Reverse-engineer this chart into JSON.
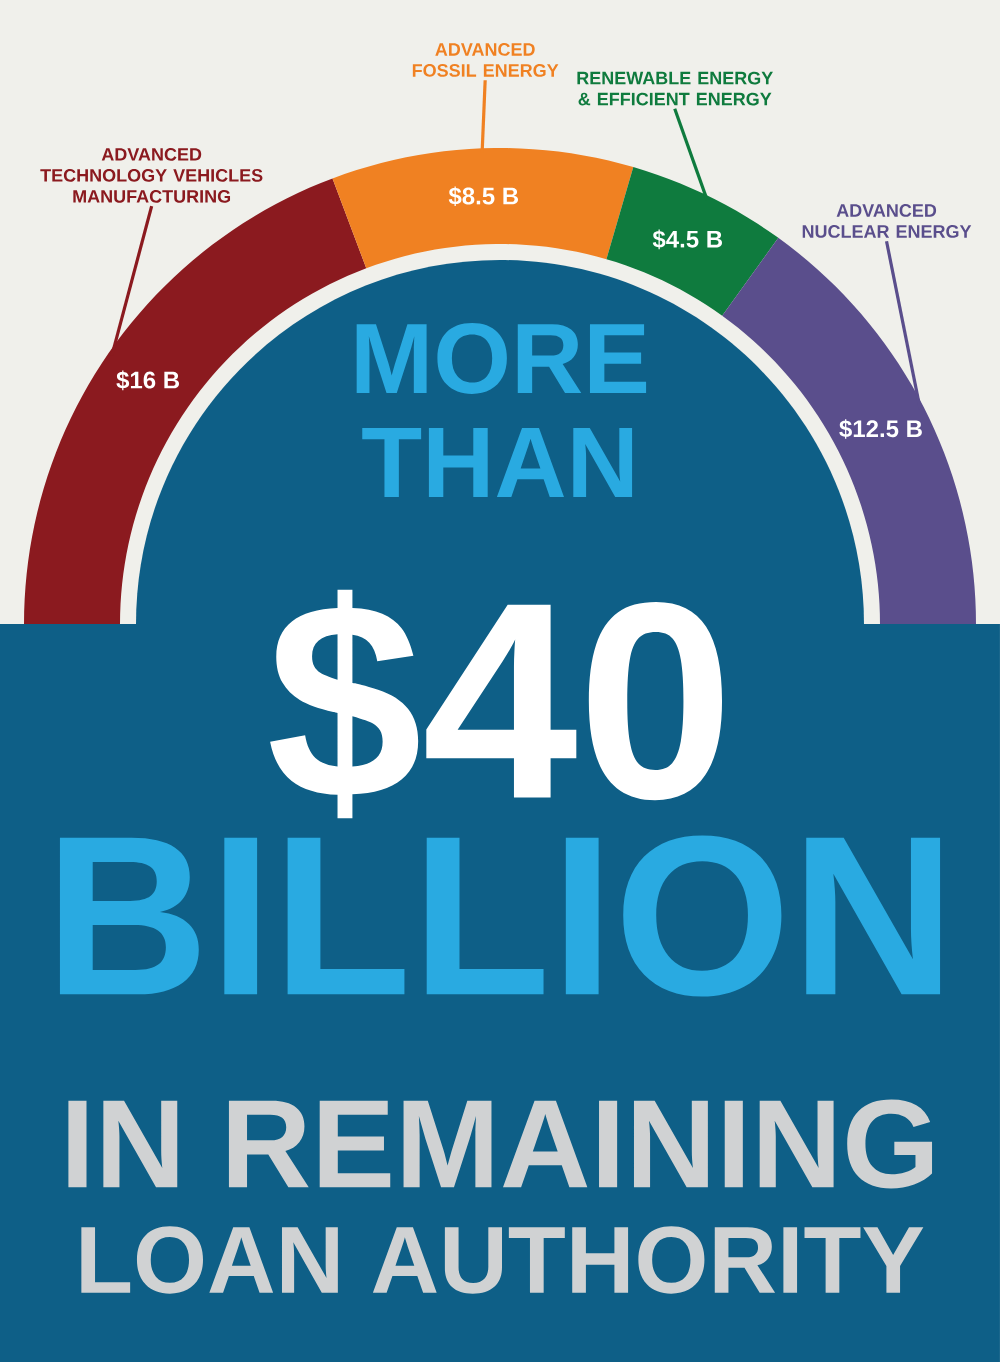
{
  "chart_data": {
    "type": "donut",
    "categories": [
      "ADVANCED TECHNOLOGY VEHICLES MANUFACTURING",
      "ADVANCED FOSSIL ENERGY",
      "RENEWABLE ENERGY & EFFICIENT ENERGY",
      "ADVANCED NUCLEAR ENERGY"
    ],
    "values": [
      16,
      8.5,
      4.5,
      12.5
    ],
    "value_labels": [
      "$16 B",
      "$8.5 B",
      "$4.5 B",
      "$12.5 B"
    ],
    "colors": [
      "#8b1a1f",
      "#f08122",
      "#0f7b3e",
      "#5a4e8c"
    ],
    "annotations": [
      "MORE THAN",
      "$40",
      "BILLION",
      "IN REMAINING",
      "LOAN AUTHORITY"
    ]
  }
}
